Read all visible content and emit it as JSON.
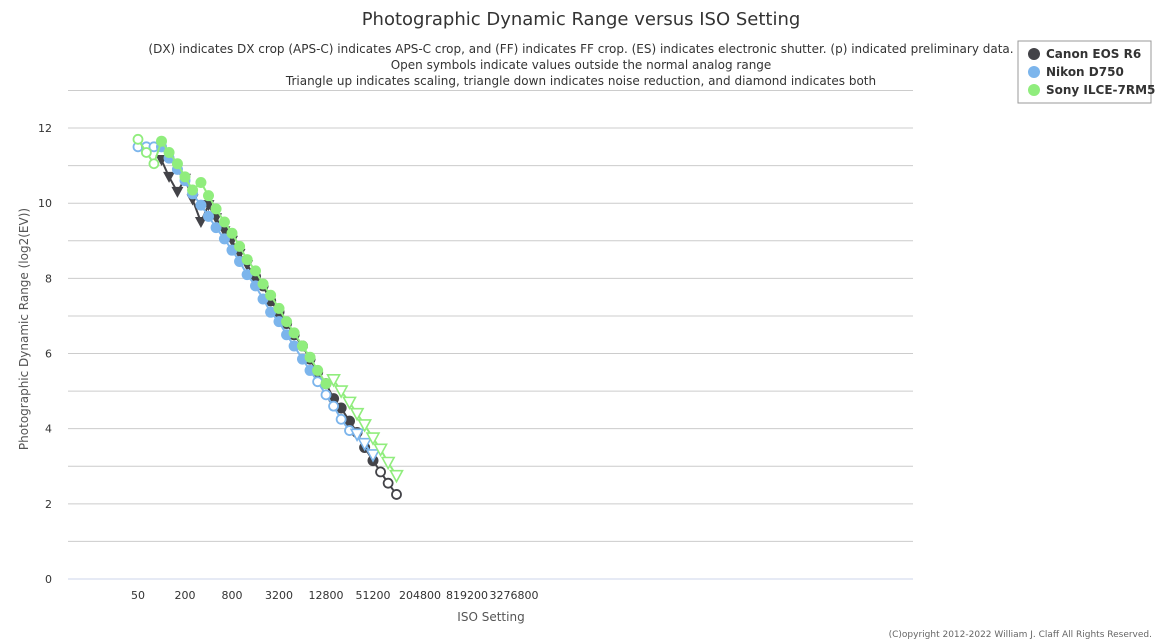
{
  "chart_data": {
    "type": "line",
    "title": "Photographic Dynamic Range versus ISO Setting",
    "subtitle_lines": [
      "(DX) indicates DX crop (APS-C) indicates APS-C crop, and (FF) indicates FF crop. (ES) indicates electronic shutter. (p) indicated preliminary data.",
      "Open symbols indicate values outside the normal analog range",
      "Triangle up indicates scaling, triangle down indicates noise reduction, and diamond indicates both"
    ],
    "xlabel": "ISO Setting",
    "ylabel": "Photographic Dynamic Range (log2(EV))",
    "x_scale": "log2",
    "xlim": [
      25,
      5000000
    ],
    "ylim": [
      0,
      13
    ],
    "x_ticks": [
      50,
      200,
      800,
      3200,
      12800,
      51200,
      204800,
      819200,
      3276800
    ],
    "x_tick_labels": [
      "50",
      "200",
      "800",
      "3200",
      "12800",
      "51200",
      "204800",
      "819200",
      "3276800"
    ],
    "y_ticks": [
      0,
      2,
      4,
      6,
      8,
      10,
      12
    ],
    "y_tick_labels": [
      "0",
      "2",
      "4",
      "6",
      "8",
      "10",
      "12"
    ],
    "grid": true,
    "legend_position": "top-right",
    "copyright": "(C)opyright 2012-2022 William J. Claff All Rights Reserved.",
    "series": [
      {
        "name": "Canon EOS R6",
        "color": "#434348",
        "points": [
          {
            "x": 100,
            "y": 11.15,
            "m": "tri-down"
          },
          {
            "x": 125,
            "y": 10.7,
            "m": "tri-down"
          },
          {
            "x": 160,
            "y": 10.3,
            "m": "tri-down"
          },
          {
            "x": 200,
            "y": 10.65,
            "m": "tri-down"
          },
          {
            "x": 250,
            "y": 10.1,
            "m": "tri-down"
          },
          {
            "x": 320,
            "y": 9.5,
            "m": "tri-down"
          },
          {
            "x": 400,
            "y": 9.95,
            "m": "tri-down"
          },
          {
            "x": 500,
            "y": 9.6,
            "m": "tri-down"
          },
          {
            "x": 640,
            "y": 9.25,
            "m": "tri-down"
          },
          {
            "x": 800,
            "y": 9.0,
            "m": "tri-down"
          },
          {
            "x": 1000,
            "y": 8.65,
            "m": "tri-down"
          },
          {
            "x": 1250,
            "y": 8.35,
            "m": "tri-down"
          },
          {
            "x": 1600,
            "y": 8.05,
            "m": "filled"
          },
          {
            "x": 2000,
            "y": 7.8,
            "m": "filled"
          },
          {
            "x": 2500,
            "y": 7.4,
            "m": "filled"
          },
          {
            "x": 3200,
            "y": 7.1,
            "m": "filled"
          },
          {
            "x": 4000,
            "y": 6.8,
            "m": "filled"
          },
          {
            "x": 5000,
            "y": 6.5,
            "m": "filled"
          },
          {
            "x": 6400,
            "y": 6.2,
            "m": "filled"
          },
          {
            "x": 8000,
            "y": 5.85,
            "m": "filled"
          },
          {
            "x": 10000,
            "y": 5.5,
            "m": "filled"
          },
          {
            "x": 12800,
            "y": 5.2,
            "m": "filled"
          },
          {
            "x": 16000,
            "y": 4.8,
            "m": "filled"
          },
          {
            "x": 20000,
            "y": 4.55,
            "m": "filled"
          },
          {
            "x": 25600,
            "y": 4.2,
            "m": "filled"
          },
          {
            "x": 32000,
            "y": 3.9,
            "m": "filled"
          },
          {
            "x": 40000,
            "y": 3.5,
            "m": "filled"
          },
          {
            "x": 51200,
            "y": 3.15,
            "m": "filled"
          },
          {
            "x": 64000,
            "y": 2.85,
            "m": "open"
          },
          {
            "x": 80000,
            "y": 2.55,
            "m": "open"
          },
          {
            "x": 102400,
            "y": 2.25,
            "m": "open"
          }
        ]
      },
      {
        "name": "Nikon D750",
        "color": "#7cb5ec",
        "points": [
          {
            "x": 50,
            "y": 11.5,
            "m": "open"
          },
          {
            "x": 64,
            "y": 11.5,
            "m": "open"
          },
          {
            "x": 80,
            "y": 11.5,
            "m": "open"
          },
          {
            "x": 100,
            "y": 11.5,
            "m": "filled"
          },
          {
            "x": 125,
            "y": 11.2,
            "m": "filled"
          },
          {
            "x": 160,
            "y": 10.9,
            "m": "filled"
          },
          {
            "x": 200,
            "y": 10.6,
            "m": "filled"
          },
          {
            "x": 250,
            "y": 10.25,
            "m": "filled"
          },
          {
            "x": 320,
            "y": 9.95,
            "m": "filled"
          },
          {
            "x": 400,
            "y": 9.65,
            "m": "filled"
          },
          {
            "x": 500,
            "y": 9.35,
            "m": "filled"
          },
          {
            "x": 640,
            "y": 9.05,
            "m": "filled"
          },
          {
            "x": 800,
            "y": 8.75,
            "m": "filled"
          },
          {
            "x": 1000,
            "y": 8.45,
            "m": "filled"
          },
          {
            "x": 1250,
            "y": 8.1,
            "m": "filled"
          },
          {
            "x": 1600,
            "y": 7.8,
            "m": "filled"
          },
          {
            "x": 2000,
            "y": 7.45,
            "m": "filled"
          },
          {
            "x": 2500,
            "y": 7.1,
            "m": "filled"
          },
          {
            "x": 3200,
            "y": 6.85,
            "m": "filled"
          },
          {
            "x": 4000,
            "y": 6.5,
            "m": "filled"
          },
          {
            "x": 5000,
            "y": 6.2,
            "m": "filled"
          },
          {
            "x": 6400,
            "y": 5.85,
            "m": "filled"
          },
          {
            "x": 8000,
            "y": 5.55,
            "m": "filled"
          },
          {
            "x": 10000,
            "y": 5.25,
            "m": "open"
          },
          {
            "x": 12800,
            "y": 4.9,
            "m": "open"
          },
          {
            "x": 16000,
            "y": 4.6,
            "m": "open"
          },
          {
            "x": 20000,
            "y": 4.25,
            "m": "open"
          },
          {
            "x": 25600,
            "y": 3.95,
            "m": "open"
          },
          {
            "x": 32000,
            "y": 3.85,
            "m": "open-tri-down"
          },
          {
            "x": 40000,
            "y": 3.6,
            "m": "open-tri-down"
          },
          {
            "x": 51200,
            "y": 3.3,
            "m": "open-tri-down"
          }
        ]
      },
      {
        "name": "Sony ILCE-7RM5",
        "color": "#90ed7d",
        "points": [
          {
            "x": 50,
            "y": 11.7,
            "m": "open"
          },
          {
            "x": 64,
            "y": 11.35,
            "m": "open"
          },
          {
            "x": 80,
            "y": 11.05,
            "m": "open"
          },
          {
            "x": 100,
            "y": 11.65,
            "m": "filled"
          },
          {
            "x": 125,
            "y": 11.35,
            "m": "filled"
          },
          {
            "x": 160,
            "y": 11.05,
            "m": "filled"
          },
          {
            "x": 200,
            "y": 10.7,
            "m": "filled"
          },
          {
            "x": 250,
            "y": 10.35,
            "m": "filled"
          },
          {
            "x": 320,
            "y": 10.55,
            "m": "filled"
          },
          {
            "x": 400,
            "y": 10.2,
            "m": "filled"
          },
          {
            "x": 500,
            "y": 9.85,
            "m": "filled"
          },
          {
            "x": 640,
            "y": 9.5,
            "m": "filled"
          },
          {
            "x": 800,
            "y": 9.2,
            "m": "filled"
          },
          {
            "x": 1000,
            "y": 8.85,
            "m": "filled"
          },
          {
            "x": 1250,
            "y": 8.5,
            "m": "filled"
          },
          {
            "x": 1600,
            "y": 8.2,
            "m": "filled"
          },
          {
            "x": 2000,
            "y": 7.85,
            "m": "filled"
          },
          {
            "x": 2500,
            "y": 7.55,
            "m": "filled"
          },
          {
            "x": 3200,
            "y": 7.2,
            "m": "filled"
          },
          {
            "x": 4000,
            "y": 6.85,
            "m": "filled"
          },
          {
            "x": 5000,
            "y": 6.55,
            "m": "filled"
          },
          {
            "x": 6400,
            "y": 6.2,
            "m": "filled"
          },
          {
            "x": 8000,
            "y": 5.9,
            "m": "filled"
          },
          {
            "x": 10000,
            "y": 5.55,
            "m": "filled"
          },
          {
            "x": 12800,
            "y": 5.2,
            "m": "filled"
          },
          {
            "x": 16000,
            "y": 5.3,
            "m": "open-tri-down"
          },
          {
            "x": 20000,
            "y": 5.0,
            "m": "open-tri-down"
          },
          {
            "x": 25600,
            "y": 4.7,
            "m": "open-tri-down"
          },
          {
            "x": 32000,
            "y": 4.4,
            "m": "open-tri-down"
          },
          {
            "x": 40000,
            "y": 4.1,
            "m": "open-tri-down"
          },
          {
            "x": 51200,
            "y": 3.75,
            "m": "open-tri-down"
          },
          {
            "x": 64000,
            "y": 3.45,
            "m": "open-tri-down"
          },
          {
            "x": 80000,
            "y": 3.1,
            "m": "open-tri-down"
          },
          {
            "x": 102400,
            "y": 2.75,
            "m": "open-tri-down"
          }
        ]
      }
    ]
  }
}
